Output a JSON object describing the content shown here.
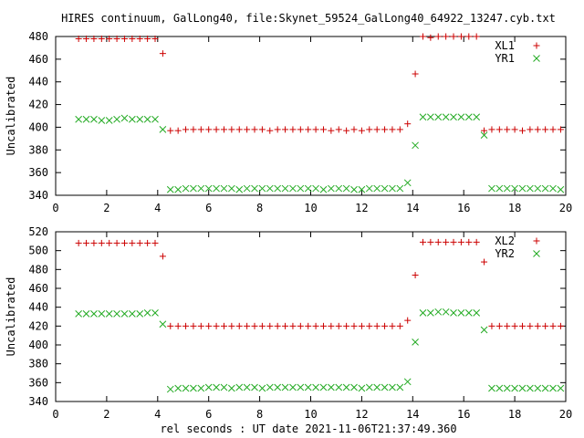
{
  "title": "HIRES continuum, GalLong40, file:Skynet_59524_GalLong40_64922_13247.cyb.txt",
  "xlabel": "rel seconds : UT date 2021-11-06T21:37:49.360",
  "colors": {
    "xl": "#cc0000",
    "yr": "#22aa22",
    "axis": "#000000"
  },
  "chart_data": [
    {
      "type": "scatter",
      "ylabel": "Uncalibrated",
      "xlim": [
        0,
        20
      ],
      "ylim": [
        340,
        480
      ],
      "xticks": [
        0,
        2,
        4,
        6,
        8,
        10,
        12,
        14,
        16,
        18,
        20
      ],
      "yticks": [
        340,
        360,
        380,
        400,
        420,
        440,
        460,
        480
      ],
      "legend_position": "top-right",
      "series": [
        {
          "name": "XL1",
          "marker": "plus",
          "color": "#cc0000",
          "x": [
            0.9,
            1.2,
            1.5,
            1.8,
            2.1,
            2.4,
            2.7,
            3.0,
            3.3,
            3.6,
            3.9,
            4.2,
            4.5,
            4.8,
            5.1,
            5.4,
            5.7,
            6.0,
            6.3,
            6.6,
            6.9,
            7.2,
            7.5,
            7.8,
            8.1,
            8.4,
            8.7,
            9.0,
            9.3,
            9.6,
            9.9,
            10.2,
            10.5,
            10.8,
            11.1,
            11.4,
            11.7,
            12.0,
            12.3,
            12.6,
            12.9,
            13.2,
            13.5,
            13.8,
            14.1,
            14.4,
            14.7,
            15.0,
            15.3,
            15.6,
            15.9,
            16.2,
            16.5,
            16.8,
            17.1,
            17.4,
            17.7,
            18.0,
            18.3,
            18.6,
            18.9,
            19.2,
            19.5,
            19.8
          ],
          "y": [
            478,
            478,
            478,
            478,
            478,
            478,
            478,
            478,
            478,
            478,
            478,
            465,
            397,
            397,
            398,
            398,
            398,
            398,
            398,
            398,
            398,
            398,
            398,
            398,
            398,
            397,
            398,
            398,
            398,
            398,
            398,
            398,
            398,
            397,
            398,
            397,
            398,
            397,
            398,
            398,
            398,
            398,
            398,
            403,
            447,
            480,
            479,
            480,
            480,
            480,
            480,
            480,
            480,
            397,
            398,
            398,
            398,
            398,
            397,
            398,
            398,
            398,
            398,
            398
          ]
        },
        {
          "name": "YR1",
          "marker": "cross",
          "color": "#22aa22",
          "x": [
            0.9,
            1.2,
            1.5,
            1.8,
            2.1,
            2.4,
            2.7,
            3.0,
            3.3,
            3.6,
            3.9,
            4.2,
            4.5,
            4.8,
            5.1,
            5.4,
            5.7,
            6.0,
            6.3,
            6.6,
            6.9,
            7.2,
            7.5,
            7.8,
            8.1,
            8.4,
            8.7,
            9.0,
            9.3,
            9.6,
            9.9,
            10.2,
            10.5,
            10.8,
            11.1,
            11.4,
            11.7,
            12.0,
            12.3,
            12.6,
            12.9,
            13.2,
            13.5,
            13.8,
            14.1,
            14.4,
            14.7,
            15.0,
            15.3,
            15.6,
            15.9,
            16.2,
            16.5,
            16.8,
            17.1,
            17.4,
            17.7,
            18.0,
            18.3,
            18.6,
            18.9,
            19.2,
            19.5,
            19.8
          ],
          "y": [
            407,
            407,
            407,
            406,
            406,
            407,
            408,
            407,
            407,
            407,
            407,
            398,
            345,
            345,
            346,
            346,
            346,
            346,
            346,
            346,
            346,
            345,
            346,
            346,
            346,
            346,
            346,
            346,
            346,
            346,
            346,
            346,
            345,
            346,
            346,
            346,
            345,
            345,
            346,
            346,
            346,
            346,
            346,
            351,
            384,
            409,
            409,
            409,
            409,
            409,
            409,
            409,
            409,
            393,
            346,
            346,
            346,
            346,
            346,
            346,
            346,
            346,
            346,
            345
          ]
        }
      ]
    },
    {
      "type": "scatter",
      "ylabel": "Uncalibrated",
      "xlim": [
        0,
        20
      ],
      "ylim": [
        340,
        520
      ],
      "xticks": [
        0,
        2,
        4,
        6,
        8,
        10,
        12,
        14,
        16,
        18,
        20
      ],
      "yticks": [
        340,
        360,
        380,
        400,
        420,
        440,
        460,
        480,
        500,
        520
      ],
      "legend_position": "top-right",
      "series": [
        {
          "name": "XL2",
          "marker": "plus",
          "color": "#cc0000",
          "x": [
            0.9,
            1.2,
            1.5,
            1.8,
            2.1,
            2.4,
            2.7,
            3.0,
            3.3,
            3.6,
            3.9,
            4.2,
            4.5,
            4.8,
            5.1,
            5.4,
            5.7,
            6.0,
            6.3,
            6.6,
            6.9,
            7.2,
            7.5,
            7.8,
            8.1,
            8.4,
            8.7,
            9.0,
            9.3,
            9.6,
            9.9,
            10.2,
            10.5,
            10.8,
            11.1,
            11.4,
            11.7,
            12.0,
            12.3,
            12.6,
            12.9,
            13.2,
            13.5,
            13.8,
            14.1,
            14.4,
            14.7,
            15.0,
            15.3,
            15.6,
            15.9,
            16.2,
            16.5,
            16.8,
            17.1,
            17.4,
            17.7,
            18.0,
            18.3,
            18.6,
            18.9,
            19.2,
            19.5,
            19.8
          ],
          "y": [
            508,
            508,
            508,
            508,
            508,
            508,
            508,
            508,
            508,
            508,
            508,
            494,
            420,
            420,
            420,
            420,
            420,
            420,
            420,
            420,
            420,
            420,
            420,
            420,
            420,
            420,
            420,
            420,
            420,
            420,
            420,
            420,
            420,
            420,
            420,
            420,
            420,
            420,
            420,
            420,
            420,
            420,
            420,
            426,
            474,
            509,
            509,
            509,
            509,
            509,
            509,
            509,
            509,
            488,
            420,
            420,
            420,
            420,
            420,
            420,
            420,
            420,
            420,
            420
          ]
        },
        {
          "name": "YR2",
          "marker": "cross",
          "color": "#22aa22",
          "x": [
            0.9,
            1.2,
            1.5,
            1.8,
            2.1,
            2.4,
            2.7,
            3.0,
            3.3,
            3.6,
            3.9,
            4.2,
            4.5,
            4.8,
            5.1,
            5.4,
            5.7,
            6.0,
            6.3,
            6.6,
            6.9,
            7.2,
            7.5,
            7.8,
            8.1,
            8.4,
            8.7,
            9.0,
            9.3,
            9.6,
            9.9,
            10.2,
            10.5,
            10.8,
            11.1,
            11.4,
            11.7,
            12.0,
            12.3,
            12.6,
            12.9,
            13.2,
            13.5,
            13.8,
            14.1,
            14.4,
            14.7,
            15.0,
            15.3,
            15.6,
            15.9,
            16.2,
            16.5,
            16.8,
            17.1,
            17.4,
            17.7,
            18.0,
            18.3,
            18.6,
            18.9,
            19.2,
            19.5,
            19.8
          ],
          "y": [
            433,
            433,
            433,
            433,
            433,
            433,
            433,
            433,
            433,
            434,
            434,
            422,
            353,
            354,
            354,
            354,
            354,
            355,
            355,
            355,
            354,
            355,
            355,
            355,
            354,
            355,
            355,
            355,
            355,
            355,
            355,
            355,
            355,
            355,
            355,
            355,
            355,
            354,
            355,
            355,
            355,
            355,
            355,
            361,
            403,
            434,
            434,
            435,
            435,
            434,
            434,
            434,
            434,
            416,
            354,
            354,
            354,
            354,
            354,
            354,
            354,
            354,
            354,
            354
          ]
        }
      ]
    }
  ]
}
